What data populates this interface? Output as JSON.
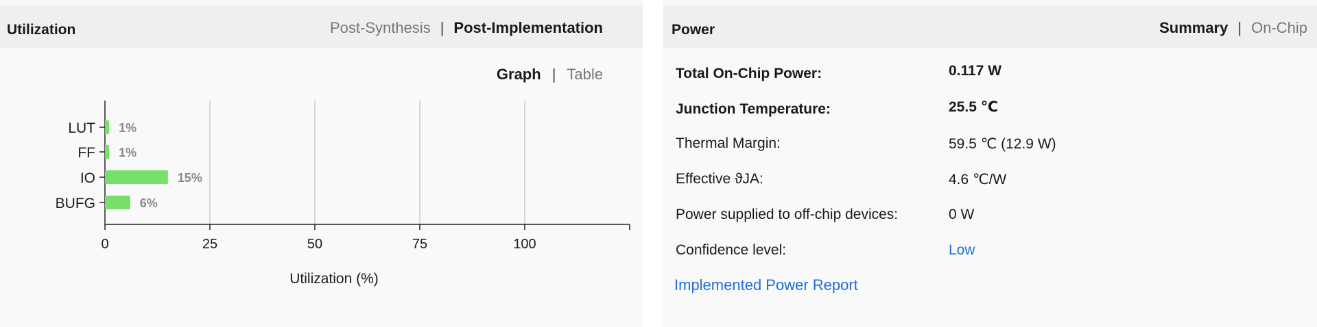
{
  "utilization": {
    "title": "Utilization",
    "header_tabs": [
      {
        "label": "Post-Synthesis",
        "active": false
      },
      {
        "label": "Post-Implementation",
        "active": true
      }
    ],
    "view_tabs": [
      {
        "label": "Graph",
        "active": true
      },
      {
        "label": "Table",
        "active": false
      }
    ]
  },
  "chart_data": {
    "type": "bar",
    "orientation": "horizontal",
    "categories": [
      "LUT",
      "FF",
      "IO",
      "BUFG"
    ],
    "values": [
      1,
      1,
      15,
      6
    ],
    "data_labels": [
      "1%",
      "1%",
      "15%",
      "6%"
    ],
    "xlabel": "Utilization (%)",
    "xlim": [
      0,
      125
    ],
    "xticks": [
      0,
      25,
      50,
      75,
      100
    ],
    "grid": true,
    "bar_color": "#77e06a"
  },
  "power": {
    "title": "Power",
    "header_tabs": [
      {
        "label": "Summary",
        "active": true
      },
      {
        "label": "On-Chip",
        "active": false
      }
    ],
    "rows": [
      {
        "label": "Total On-Chip Power:",
        "value": "0.117 W",
        "bold": true
      },
      {
        "label": "Junction Temperature:",
        "value": "25.5 ℃",
        "bold": true
      },
      {
        "label": "Thermal Margin:",
        "value": "59.5 ℃ (12.9 W)",
        "bold": false
      },
      {
        "label": "Effective ϑJA:",
        "value": "4.6 ℃/W",
        "bold": false
      },
      {
        "label": "Power supplied to off-chip devices:",
        "value": "0 W",
        "bold": false
      },
      {
        "label": "Confidence level:",
        "value": "Low",
        "bold": false,
        "link": true
      }
    ],
    "report_link": "Implemented Power Report",
    "link_color": "#1e6fd9"
  }
}
